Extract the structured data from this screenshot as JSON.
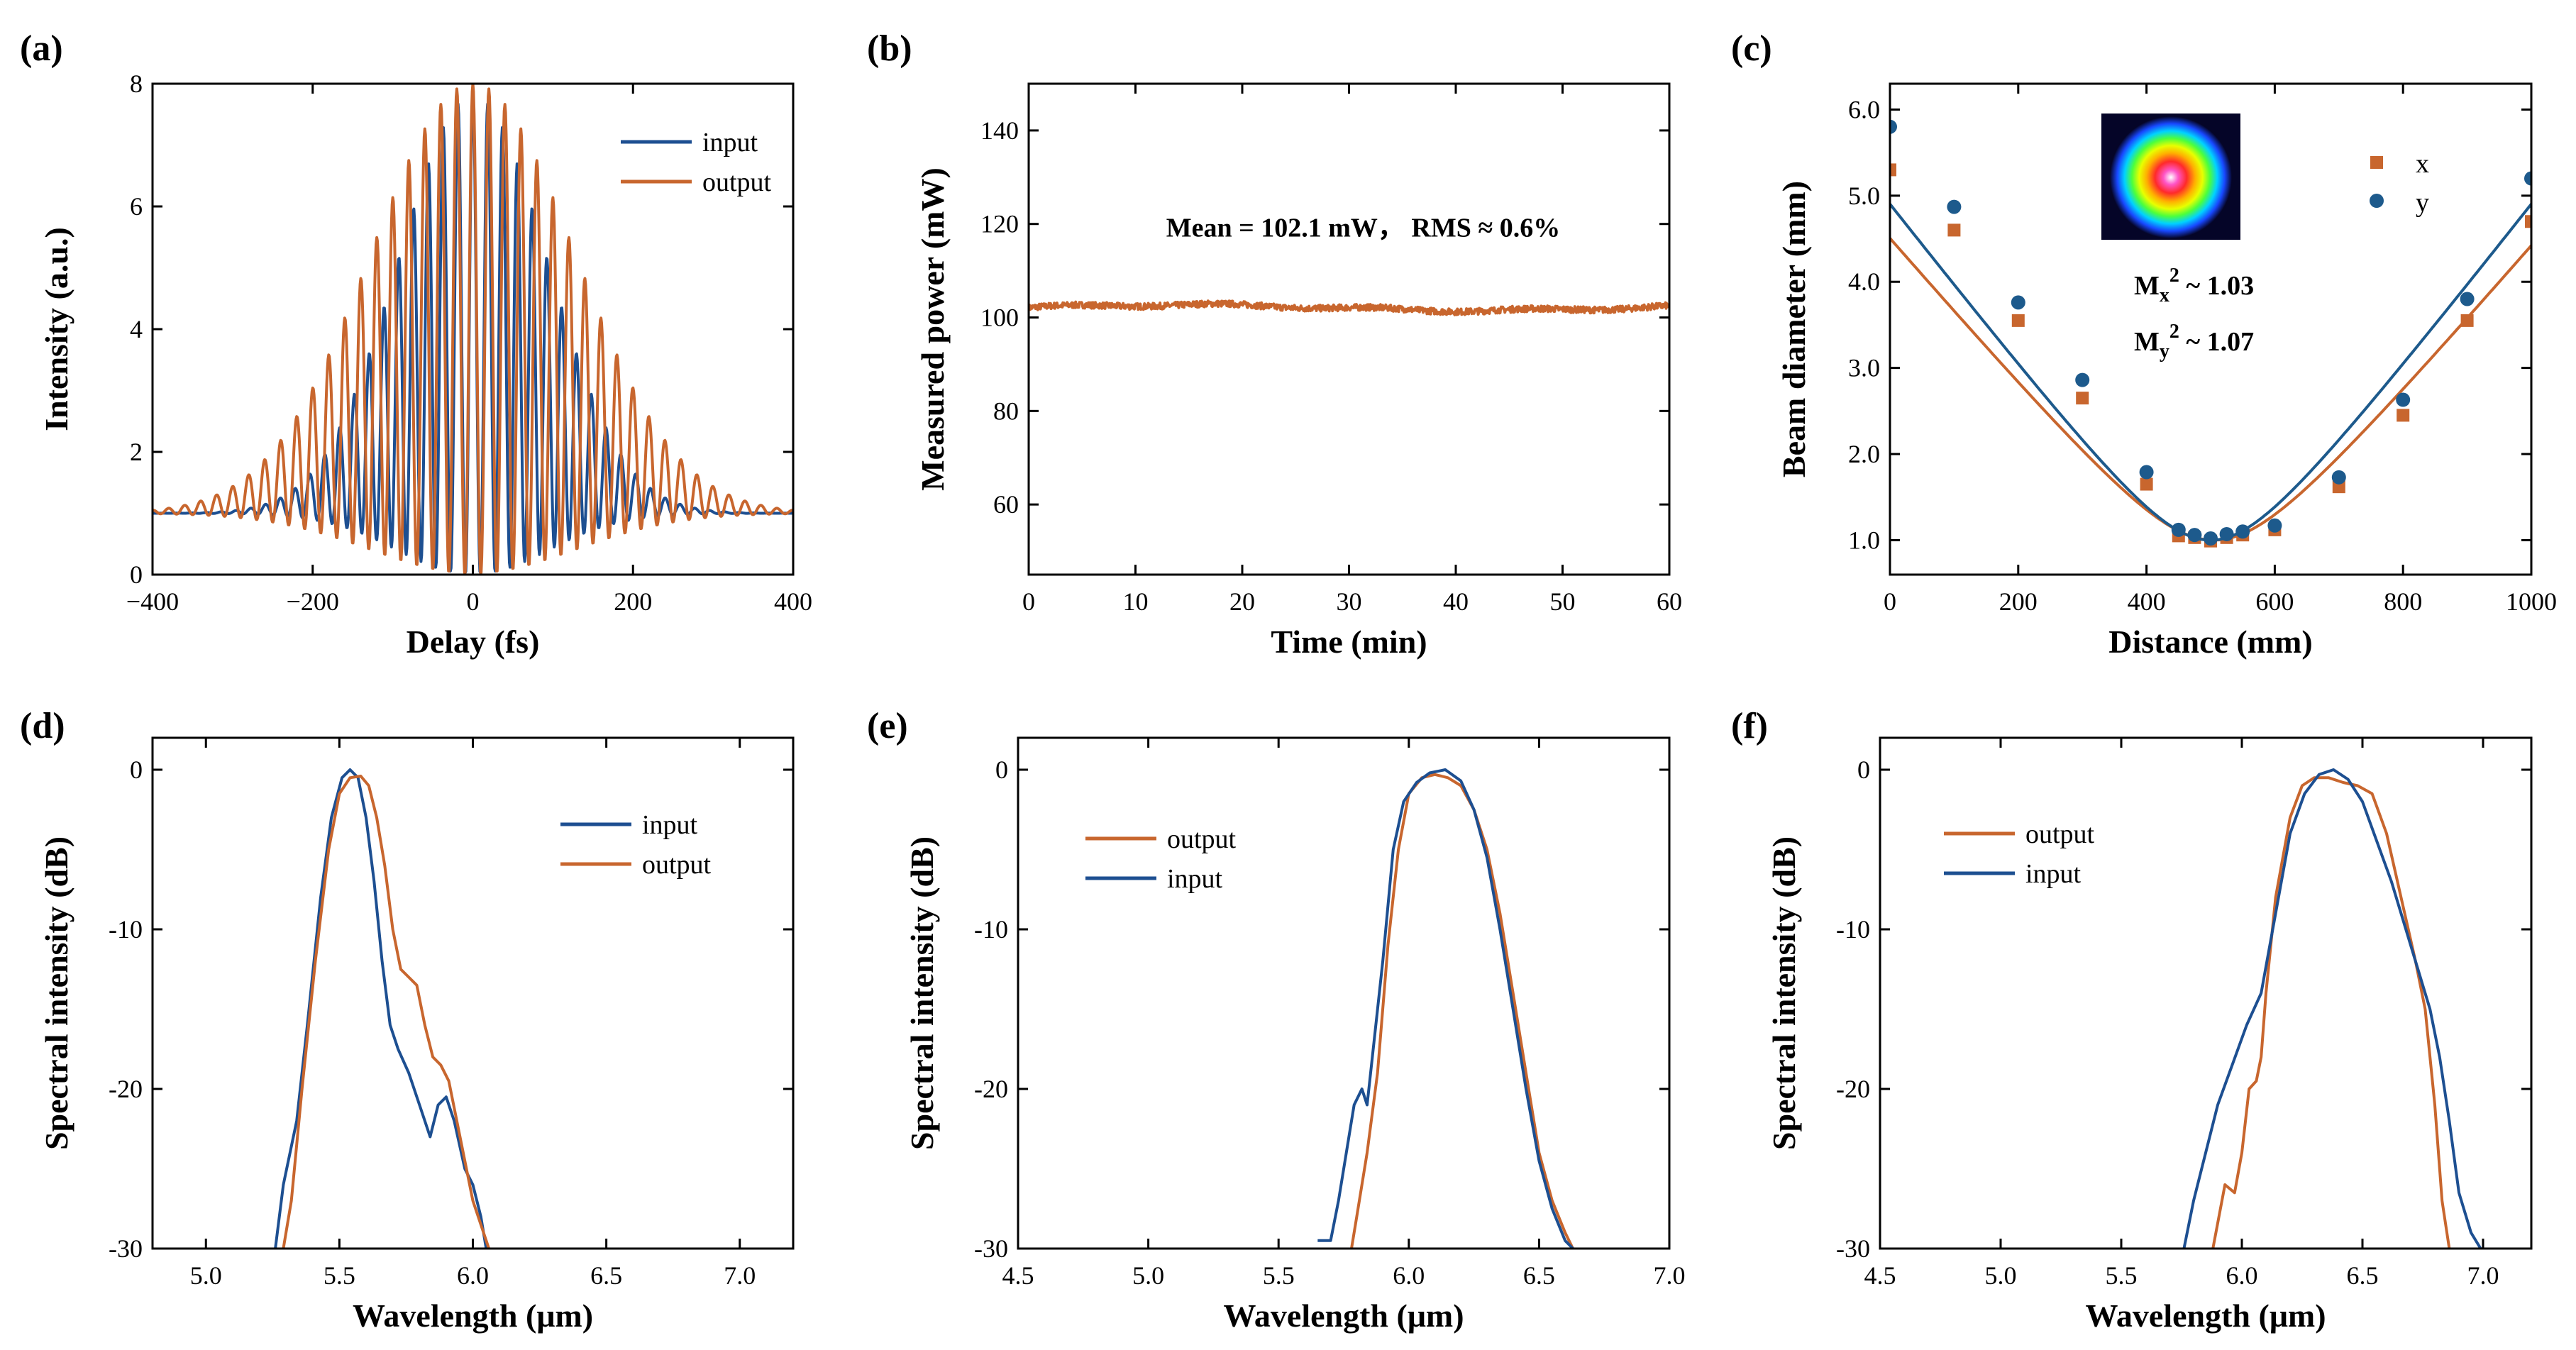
{
  "colors": {
    "input_blue": "#1d4f91",
    "output_orange": "#c8662e",
    "x_orange": "#c8662e",
    "y_blue": "#1d5a8c"
  },
  "chart_data": [
    {
      "panel": "(a)",
      "type": "line",
      "title": "",
      "xlabel": "Delay (fs)",
      "ylabel": "Intensity (a.u.)",
      "xlim": [
        -400,
        400
      ],
      "ylim": [
        0,
        8
      ],
      "xticks": [
        -400,
        -200,
        0,
        200,
        400
      ],
      "xtick_labels": [
        "−400",
        "−200",
        "0",
        "200",
        "400"
      ],
      "yticks": [
        0,
        2,
        4,
        6,
        8
      ],
      "ytick_labels": [
        "0",
        "2",
        "4",
        "6",
        "8"
      ],
      "legend_position": "top-right",
      "series": [
        {
          "name": "input",
          "color_key": "input_blue",
          "kind": "interferogram",
          "fwhm_fs": 220,
          "carrier_period_fs": 18.5,
          "peak": 7.8,
          "background": 1.0,
          "phase": 0.0
        },
        {
          "name": "output",
          "color_key": "output_orange",
          "kind": "interferogram",
          "fwhm_fs": 300,
          "carrier_period_fs": 20.0,
          "peak": 8.0,
          "background": 1.0,
          "phase": 0.3
        }
      ]
    },
    {
      "panel": "(b)",
      "type": "line",
      "xlabel": "Time (min)",
      "ylabel": "Measured power (mW)",
      "xlim": [
        0,
        60
      ],
      "ylim": [
        45,
        150
      ],
      "xticks": [
        0,
        10,
        20,
        30,
        40,
        50,
        60
      ],
      "xtick_labels": [
        "0",
        "10",
        "20",
        "30",
        "40",
        "50",
        "60"
      ],
      "yticks": [
        60,
        80,
        100,
        120,
        140
      ],
      "ytick_labels": [
        "60",
        "80",
        "100",
        "120",
        "140"
      ],
      "annotation": "Mean = 102.1 mW， RMS ≈ 0.6%",
      "series": [
        {
          "name": "power",
          "color_key": "output_orange",
          "kind": "noise",
          "mean": 102.1,
          "rms_fraction": 0.006,
          "points": 1200
        }
      ]
    },
    {
      "panel": "(c)",
      "type": "scatter",
      "xlabel": "Distance (mm)",
      "ylabel": "Beam diameter (mm)",
      "xlim": [
        0,
        1000
      ],
      "ylim": [
        0.6,
        6.3
      ],
      "xticks": [
        0,
        200,
        400,
        600,
        800,
        1000
      ],
      "xtick_labels": [
        "0",
        "200",
        "400",
        "600",
        "800",
        "1000"
      ],
      "yticks": [
        1.0,
        2.0,
        3.0,
        4.0,
        5.0,
        6.0
      ],
      "ytick_labels": [
        "1.0",
        "2.0",
        "3.0",
        "4.0",
        "5.0",
        "6.0"
      ],
      "legend_position": "top-right",
      "m2": {
        "x_base": "M",
        "x_sub": "x",
        "x_sup": "2",
        "x_val": " ~ 1.03",
        "y_base": "M",
        "y_sub": "y",
        "y_sup": "2",
        "y_val": " ~ 1.07"
      },
      "series": [
        {
          "name": "x",
          "marker": "square",
          "color_key": "x_orange",
          "x": [
            0,
            100,
            200,
            300,
            400,
            450,
            475,
            500,
            525,
            550,
            600,
            700,
            800,
            900,
            1000
          ],
          "y": [
            5.3,
            4.6,
            3.55,
            2.65,
            1.65,
            1.05,
            1.03,
            0.99,
            1.03,
            1.06,
            1.12,
            1.62,
            2.45,
            3.55,
            4.7
          ],
          "fit_w0": 1.0,
          "fit_z0": 505,
          "fit_slope": 0.0087
        },
        {
          "name": "y",
          "marker": "circle",
          "color_key": "y_blue",
          "x": [
            0,
            100,
            200,
            300,
            400,
            450,
            475,
            500,
            525,
            550,
            600,
            700,
            800,
            900,
            1000
          ],
          "y": [
            5.8,
            4.87,
            3.76,
            2.86,
            1.79,
            1.12,
            1.06,
            1.02,
            1.07,
            1.1,
            1.17,
            1.73,
            2.63,
            3.8,
            5.2
          ],
          "fit_w0": 1.0,
          "fit_z0": 500,
          "fit_slope": 0.0096
        }
      ]
    },
    {
      "panel": "(d)",
      "type": "line",
      "xlabel": "Wavelength (μm)",
      "ylabel": "Spectral intensity (dB)",
      "xlim": [
        4.8,
        7.2
      ],
      "ylim": [
        -30,
        2
      ],
      "xticks": [
        5.0,
        5.5,
        6.0,
        6.5,
        7.0
      ],
      "xtick_labels": [
        "5.0",
        "5.5",
        "6.0",
        "6.5",
        "7.0"
      ],
      "yticks": [
        0,
        -10,
        -20,
        -30
      ],
      "ytick_labels": [
        "0",
        "-10",
        "-20",
        "-30"
      ],
      "legend_position": "top-right",
      "series": [
        {
          "name": "input",
          "color_key": "input_blue",
          "x": [
            5.26,
            5.29,
            5.34,
            5.38,
            5.43,
            5.47,
            5.51,
            5.54,
            5.57,
            5.6,
            5.63,
            5.66,
            5.69,
            5.72,
            5.76,
            5.8,
            5.84,
            5.87,
            5.9,
            5.93,
            5.97,
            6.0,
            6.03,
            6.05
          ],
          "y": [
            -30,
            -26,
            -22,
            -16,
            -8,
            -3,
            -0.5,
            0,
            -0.5,
            -3,
            -7,
            -12,
            -16,
            -17.5,
            -19,
            -21,
            -23,
            -21,
            -20.5,
            -22,
            -25,
            -26,
            -28,
            -30
          ]
        },
        {
          "name": "output",
          "color_key": "output_orange",
          "x": [
            5.29,
            5.32,
            5.36,
            5.41,
            5.46,
            5.5,
            5.54,
            5.58,
            5.61,
            5.64,
            5.67,
            5.7,
            5.73,
            5.76,
            5.79,
            5.82,
            5.85,
            5.88,
            5.91,
            5.94,
            5.97,
            6.0,
            6.03,
            6.06
          ],
          "y": [
            -30,
            -27,
            -20,
            -12,
            -5,
            -1.5,
            -0.5,
            -0.4,
            -1,
            -3,
            -6,
            -10,
            -12.5,
            -13,
            -13.5,
            -16,
            -18,
            -18.5,
            -19.5,
            -22,
            -24.5,
            -27,
            -28.5,
            -30
          ]
        }
      ]
    },
    {
      "panel": "(e)",
      "type": "line",
      "xlabel": "Wavelength (μm)",
      "ylabel": "Spectral intensity (dB)",
      "xlim": [
        4.5,
        7.0
      ],
      "ylim": [
        -30,
        2
      ],
      "xticks": [
        4.5,
        5.0,
        5.5,
        6.0,
        6.5,
        7.0
      ],
      "xtick_labels": [
        "4.5",
        "5.0",
        "5.5",
        "6.0",
        "6.5",
        "7.0"
      ],
      "yticks": [
        0,
        -10,
        -20,
        -30
      ],
      "ytick_labels": [
        "0",
        "-10",
        "-20",
        "-30"
      ],
      "legend_position": "top-left",
      "series": [
        {
          "name": "output",
          "color_key": "output_orange",
          "x": [
            5.78,
            5.8,
            5.84,
            5.88,
            5.92,
            5.96,
            6.0,
            6.05,
            6.1,
            6.15,
            6.2,
            6.25,
            6.3,
            6.35,
            6.4,
            6.45,
            6.5,
            6.55,
            6.6,
            6.63
          ],
          "y": [
            -30,
            -28,
            -24,
            -19,
            -11,
            -5,
            -1.5,
            -0.5,
            -0.3,
            -0.5,
            -1,
            -2.5,
            -5,
            -9,
            -14,
            -19,
            -24,
            -27,
            -29,
            -30
          ]
        },
        {
          "name": "input",
          "color_key": "input_blue",
          "x": [
            5.65,
            5.7,
            5.73,
            5.76,
            5.79,
            5.82,
            5.84,
            5.86,
            5.9,
            5.94,
            5.98,
            6.03,
            6.08,
            6.14,
            6.2,
            6.25,
            6.3,
            6.35,
            6.4,
            6.45,
            6.5,
            6.55,
            6.6,
            6.63
          ],
          "y": [
            -29.5,
            -29.5,
            -27,
            -24,
            -21,
            -20,
            -21,
            -18,
            -12,
            -5,
            -2,
            -0.8,
            -0.2,
            0,
            -0.7,
            -2.5,
            -5.5,
            -10,
            -15,
            -20,
            -24.5,
            -27.5,
            -29.5,
            -30
          ]
        }
      ]
    },
    {
      "panel": "(f)",
      "type": "line",
      "xlabel": "Wavelength (μm)",
      "ylabel": "Spectral intensity (dB)",
      "xlim": [
        4.5,
        7.2
      ],
      "ylim": [
        -30,
        2
      ],
      "xticks": [
        4.5,
        5.0,
        5.5,
        6.0,
        6.5,
        7.0
      ],
      "xtick_labels": [
        "4.5",
        "5.0",
        "5.5",
        "6.0",
        "6.5",
        "7.0"
      ],
      "yticks": [
        0,
        -10,
        -20,
        -30
      ],
      "ytick_labels": [
        "0",
        "-10",
        "-20",
        "-30"
      ],
      "legend_position": "top-left",
      "series": [
        {
          "name": "output",
          "color_key": "output_orange",
          "x": [
            5.88,
            5.93,
            5.97,
            6.0,
            6.03,
            6.06,
            6.08,
            6.1,
            6.14,
            6.2,
            6.25,
            6.3,
            6.36,
            6.42,
            6.48,
            6.54,
            6.6,
            6.66,
            6.72,
            6.76,
            6.8,
            6.83,
            6.86
          ],
          "y": [
            -30,
            -26,
            -26.5,
            -24,
            -20,
            -19.5,
            -18,
            -14,
            -8,
            -3,
            -1,
            -0.5,
            -0.5,
            -0.8,
            -1,
            -1.5,
            -4,
            -8,
            -12,
            -15,
            -21,
            -27,
            -30
          ]
        },
        {
          "name": "input",
          "color_key": "input_blue",
          "x": [
            5.76,
            5.8,
            5.85,
            5.9,
            5.96,
            6.02,
            6.08,
            6.14,
            6.2,
            6.26,
            6.32,
            6.38,
            6.44,
            6.5,
            6.56,
            6.62,
            6.68,
            6.74,
            6.78,
            6.82,
            6.86,
            6.9,
            6.95,
            6.99
          ],
          "y": [
            -30,
            -27,
            -24,
            -21,
            -18.5,
            -16,
            -14,
            -9,
            -4,
            -1.5,
            -0.3,
            0,
            -0.6,
            -2,
            -4.5,
            -7,
            -10,
            -13,
            -15,
            -18,
            -22,
            -26.5,
            -29,
            -30
          ]
        }
      ]
    }
  ]
}
